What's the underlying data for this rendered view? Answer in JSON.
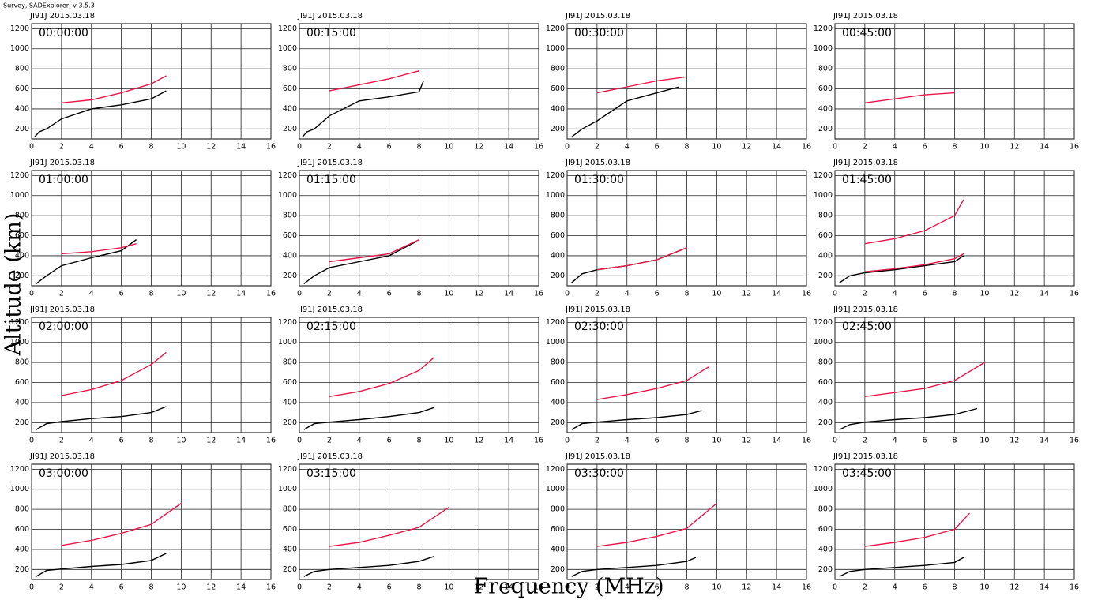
{
  "header": "Survey, SADExplorer, v 3.5.3",
  "y_label": "Altitude (km)",
  "x_label": "Frequency (MHz)",
  "chart_data": [
    {
      "type": "line",
      "title": "JI91J 2015.03.18",
      "subtitle": "00:00:00",
      "xlim": [
        0,
        16
      ],
      "ylim": [
        100,
        1250
      ],
      "xticks": [
        0,
        2,
        4,
        6,
        8,
        10,
        12,
        14,
        16
      ],
      "yticks": [
        200,
        400,
        600,
        800,
        1000,
        1200
      ],
      "grid": true,
      "series": [
        {
          "color": "#000000",
          "x": [
            0.2,
            0.5,
            1,
            2,
            4,
            6,
            8,
            9
          ],
          "values": [
            120,
            170,
            200,
            300,
            400,
            440,
            500,
            580
          ]
        },
        {
          "color": "#e8174a",
          "x": [
            2,
            4,
            6,
            8,
            9
          ],
          "values": [
            460,
            490,
            560,
            650,
            730
          ]
        }
      ]
    },
    {
      "type": "line",
      "title": "JI91J 2015.03.18",
      "subtitle": "00:15:00",
      "xlim": [
        0,
        16
      ],
      "ylim": [
        100,
        1250
      ],
      "xticks": [
        0,
        2,
        4,
        6,
        8,
        10,
        12,
        14,
        16
      ],
      "yticks": [
        200,
        400,
        600,
        800,
        1000,
        1200
      ],
      "grid": true,
      "series": [
        {
          "color": "#000000",
          "x": [
            0.2,
            0.5,
            1,
            2,
            4,
            6,
            8,
            8.3
          ],
          "values": [
            120,
            170,
            200,
            330,
            480,
            520,
            570,
            680
          ]
        },
        {
          "color": "#e8174a",
          "x": [
            2,
            4,
            6,
            8
          ],
          "values": [
            580,
            640,
            700,
            780
          ]
        }
      ]
    },
    {
      "type": "line",
      "title": "JI91J 2015.03.18",
      "subtitle": "00:30:00",
      "xlim": [
        0,
        16
      ],
      "ylim": [
        100,
        1250
      ],
      "xticks": [
        0,
        2,
        4,
        6,
        8,
        10,
        12,
        14,
        16
      ],
      "yticks": [
        200,
        400,
        600,
        800,
        1000,
        1200
      ],
      "grid": true,
      "series": [
        {
          "color": "#000000",
          "x": [
            0.3,
            1,
            2,
            4,
            6,
            7.5
          ],
          "values": [
            120,
            200,
            280,
            480,
            560,
            620
          ]
        },
        {
          "color": "#e8174a",
          "x": [
            2,
            4,
            6,
            8
          ],
          "values": [
            560,
            620,
            680,
            720
          ]
        }
      ]
    },
    {
      "type": "line",
      "title": "JI91J 2015.03.18",
      "subtitle": "00:45:00",
      "xlim": [
        0,
        16
      ],
      "ylim": [
        100,
        1250
      ],
      "xticks": [
        0,
        2,
        4,
        6,
        8,
        10,
        12,
        14,
        16
      ],
      "yticks": [
        200,
        400,
        600,
        800,
        1000,
        1200
      ],
      "grid": true,
      "series": [
        {
          "color": "#e8174a",
          "x": [
            2,
            4,
            6,
            8
          ],
          "values": [
            460,
            500,
            540,
            560
          ]
        }
      ]
    },
    {
      "type": "line",
      "title": "JI91J 2015.03.18",
      "subtitle": "01:00:00",
      "xlim": [
        0,
        16
      ],
      "ylim": [
        100,
        1250
      ],
      "xticks": [
        0,
        2,
        4,
        6,
        8,
        10,
        12,
        14,
        16
      ],
      "yticks": [
        200,
        400,
        600,
        800,
        1000,
        1200
      ],
      "grid": true,
      "series": [
        {
          "color": "#000000",
          "x": [
            0.3,
            1,
            2,
            4,
            6,
            7
          ],
          "values": [
            120,
            200,
            300,
            380,
            450,
            560
          ]
        },
        {
          "color": "#e8174a",
          "x": [
            2,
            4,
            6,
            7
          ],
          "values": [
            420,
            440,
            480,
            520
          ]
        }
      ]
    },
    {
      "type": "line",
      "title": "JI91J 2015.03.18",
      "subtitle": "01:15:00",
      "xlim": [
        0,
        16
      ],
      "ylim": [
        100,
        1250
      ],
      "xticks": [
        0,
        2,
        4,
        6,
        8,
        10,
        12,
        14,
        16
      ],
      "yticks": [
        200,
        400,
        600,
        800,
        1000,
        1200
      ],
      "grid": true,
      "series": [
        {
          "color": "#000000",
          "x": [
            0.3,
            1,
            2,
            4,
            6,
            7.8
          ],
          "values": [
            120,
            200,
            280,
            340,
            400,
            540
          ]
        },
        {
          "color": "#e8174a",
          "x": [
            2,
            4,
            6,
            8
          ],
          "values": [
            340,
            380,
            420,
            560
          ]
        }
      ]
    },
    {
      "type": "line",
      "title": "JI91J 2015.03.18",
      "subtitle": "01:30:00",
      "xlim": [
        0,
        16
      ],
      "ylim": [
        100,
        1250
      ],
      "xticks": [
        0,
        2,
        4,
        6,
        8,
        10,
        12,
        14,
        16
      ],
      "yticks": [
        200,
        400,
        600,
        800,
        1000,
        1200
      ],
      "grid": true,
      "series": [
        {
          "color": "#000000",
          "x": [
            0.3,
            1,
            2,
            4,
            6,
            8
          ],
          "values": [
            130,
            220,
            260,
            300,
            360,
            480
          ]
        },
        {
          "color": "#e8174a",
          "x": [
            2,
            4,
            6,
            8
          ],
          "values": [
            260,
            300,
            360,
            480
          ]
        }
      ]
    },
    {
      "type": "line",
      "title": "JI91J 2015.03.18",
      "subtitle": "01:45:00",
      "xlim": [
        0,
        16
      ],
      "ylim": [
        100,
        1250
      ],
      "xticks": [
        0,
        2,
        4,
        6,
        8,
        10,
        12,
        14,
        16
      ],
      "yticks": [
        200,
        400,
        600,
        800,
        1000,
        1200
      ],
      "grid": true,
      "series": [
        {
          "color": "#000000",
          "x": [
            0.3,
            1,
            2,
            4,
            6,
            8,
            8.6
          ],
          "values": [
            130,
            200,
            230,
            260,
            300,
            340,
            400
          ]
        },
        {
          "color": "#e8174a",
          "x": [
            2,
            4,
            6,
            8,
            8.6
          ],
          "values": [
            240,
            270,
            310,
            370,
            420
          ]
        },
        {
          "color": "#e8174a",
          "x": [
            2,
            4,
            6,
            8,
            8.6
          ],
          "values": [
            520,
            570,
            650,
            800,
            960
          ]
        }
      ]
    },
    {
      "type": "line",
      "title": "JI91J 2015.03.18",
      "subtitle": "02:00:00",
      "xlim": [
        0,
        16
      ],
      "ylim": [
        100,
        1250
      ],
      "xticks": [
        0,
        2,
        4,
        6,
        8,
        10,
        12,
        14,
        16
      ],
      "yticks": [
        200,
        400,
        600,
        800,
        1000,
        1200
      ],
      "grid": true,
      "series": [
        {
          "color": "#000000",
          "x": [
            0.3,
            1,
            2,
            4,
            6,
            8,
            9
          ],
          "values": [
            130,
            190,
            210,
            240,
            260,
            300,
            360
          ]
        },
        {
          "color": "#e8174a",
          "x": [
            2,
            4,
            6,
            8,
            9
          ],
          "values": [
            470,
            530,
            620,
            780,
            900
          ]
        }
      ]
    },
    {
      "type": "line",
      "title": "JI91J 2015.03.18",
      "subtitle": "02:15:00",
      "xlim": [
        0,
        16
      ],
      "ylim": [
        100,
        1250
      ],
      "xticks": [
        0,
        2,
        4,
        6,
        8,
        10,
        12,
        14,
        16
      ],
      "yticks": [
        200,
        400,
        600,
        800,
        1000,
        1200
      ],
      "grid": true,
      "series": [
        {
          "color": "#000000",
          "x": [
            0.3,
            1,
            2,
            4,
            6,
            8,
            9
          ],
          "values": [
            130,
            190,
            205,
            230,
            260,
            300,
            350
          ]
        },
        {
          "color": "#e8174a",
          "x": [
            2,
            4,
            6,
            8,
            9
          ],
          "values": [
            460,
            510,
            590,
            720,
            850
          ]
        }
      ]
    },
    {
      "type": "line",
      "title": "JI91J 2015.03.18",
      "subtitle": "02:30:00",
      "xlim": [
        0,
        16
      ],
      "ylim": [
        100,
        1250
      ],
      "xticks": [
        0,
        2,
        4,
        6,
        8,
        10,
        12,
        14,
        16
      ],
      "yticks": [
        200,
        400,
        600,
        800,
        1000,
        1200
      ],
      "grid": true,
      "series": [
        {
          "color": "#000000",
          "x": [
            0.3,
            1,
            2,
            4,
            6,
            8,
            9
          ],
          "values": [
            130,
            190,
            205,
            230,
            250,
            280,
            320
          ]
        },
        {
          "color": "#e8174a",
          "x": [
            2,
            4,
            6,
            8,
            9.5
          ],
          "values": [
            430,
            480,
            540,
            620,
            760
          ]
        }
      ]
    },
    {
      "type": "line",
      "title": "JI91J 2015.03.18",
      "subtitle": "02:45:00",
      "xlim": [
        0,
        16
      ],
      "ylim": [
        100,
        1250
      ],
      "xticks": [
        0,
        2,
        4,
        6,
        8,
        10,
        12,
        14,
        16
      ],
      "yticks": [
        200,
        400,
        600,
        800,
        1000,
        1200
      ],
      "grid": true,
      "series": [
        {
          "color": "#000000",
          "x": [
            0.3,
            1,
            2,
            4,
            6,
            8,
            9.5
          ],
          "values": [
            130,
            180,
            205,
            230,
            250,
            280,
            340
          ]
        },
        {
          "color": "#e8174a",
          "x": [
            2,
            4,
            6,
            8,
            10
          ],
          "values": [
            460,
            500,
            540,
            620,
            800
          ]
        }
      ]
    },
    {
      "type": "line",
      "title": "JI91J 2015.03.18",
      "subtitle": "03:00:00",
      "xlim": [
        0,
        16
      ],
      "ylim": [
        100,
        1250
      ],
      "xticks": [
        0,
        2,
        4,
        6,
        8,
        10,
        12,
        14,
        16
      ],
      "yticks": [
        200,
        400,
        600,
        800,
        1000,
        1200
      ],
      "grid": true,
      "series": [
        {
          "color": "#000000",
          "x": [
            0.3,
            1,
            2,
            4,
            6,
            8,
            9
          ],
          "values": [
            130,
            190,
            205,
            230,
            250,
            290,
            360
          ]
        },
        {
          "color": "#e8174a",
          "x": [
            2,
            4,
            6,
            8,
            10
          ],
          "values": [
            440,
            490,
            560,
            650,
            860
          ]
        }
      ]
    },
    {
      "type": "line",
      "title": "JI91J 2015.03.18",
      "subtitle": "03:15:00",
      "xlim": [
        0,
        16
      ],
      "ylim": [
        100,
        1250
      ],
      "xticks": [
        0,
        2,
        4,
        6,
        8,
        10,
        12,
        14,
        16
      ],
      "yticks": [
        200,
        400,
        600,
        800,
        1000,
        1200
      ],
      "grid": true,
      "series": [
        {
          "color": "#000000",
          "x": [
            0.3,
            1,
            2,
            4,
            6,
            8,
            9
          ],
          "values": [
            130,
            180,
            200,
            220,
            240,
            280,
            330
          ]
        },
        {
          "color": "#e8174a",
          "x": [
            2,
            4,
            6,
            8,
            10
          ],
          "values": [
            430,
            470,
            540,
            620,
            820
          ]
        }
      ]
    },
    {
      "type": "line",
      "title": "JI91J 2015.03.18",
      "subtitle": "03:30:00",
      "xlim": [
        0,
        16
      ],
      "ylim": [
        100,
        1250
      ],
      "xticks": [
        0,
        2,
        4,
        6,
        8,
        10,
        12,
        14,
        16
      ],
      "yticks": [
        200,
        400,
        600,
        800,
        1000,
        1200
      ],
      "grid": true,
      "series": [
        {
          "color": "#000000",
          "x": [
            0.3,
            1,
            2,
            4,
            6,
            8,
            8.6
          ],
          "values": [
            130,
            180,
            200,
            220,
            240,
            280,
            320
          ]
        },
        {
          "color": "#e8174a",
          "x": [
            2,
            4,
            6,
            8,
            10
          ],
          "values": [
            430,
            470,
            530,
            610,
            860
          ]
        }
      ]
    },
    {
      "type": "line",
      "title": "JI91J 2015.03.18",
      "subtitle": "03:45:00",
      "xlim": [
        0,
        16
      ],
      "ylim": [
        100,
        1250
      ],
      "xticks": [
        0,
        2,
        4,
        6,
        8,
        10,
        12,
        14,
        16
      ],
      "yticks": [
        200,
        400,
        600,
        800,
        1000,
        1200
      ],
      "grid": true,
      "series": [
        {
          "color": "#000000",
          "x": [
            0.3,
            1,
            2,
            4,
            6,
            8,
            8.6
          ],
          "values": [
            130,
            180,
            200,
            220,
            240,
            270,
            320
          ]
        },
        {
          "color": "#e8174a",
          "x": [
            2,
            4,
            6,
            8,
            9
          ],
          "values": [
            430,
            470,
            520,
            600,
            760
          ]
        }
      ]
    }
  ]
}
